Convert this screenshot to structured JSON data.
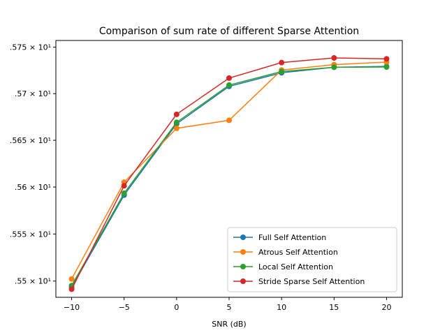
{
  "chart_data": {
    "type": "line",
    "title": "Comparison of sum rate of different Sparse Attention",
    "xlabel": "SNR (dB)",
    "ylabel": "",
    "x": [
      -10,
      -5,
      0,
      5,
      10,
      15,
      20
    ],
    "xticks": [
      "−10",
      "−5",
      "0",
      "5",
      "10",
      "15",
      "20"
    ],
    "xlim": [
      -11.5,
      21.5
    ],
    "ylim": [
      15.4828,
      15.7572
    ],
    "yscale": "log",
    "yticks": [
      {
        "value": 15.5,
        "label": ".55 × 10¹"
      },
      {
        "value": 15.55,
        "label": ".555 × 10¹"
      },
      {
        "value": 15.6,
        "label": ".56 × 10¹"
      },
      {
        "value": 15.65,
        "label": ".565 × 10¹"
      },
      {
        "value": 15.7,
        "label": ".57 × 10¹"
      },
      {
        "value": 15.75,
        "label": ".575 × 10¹"
      }
    ],
    "legend_position": "lower-right",
    "grid": false,
    "series": [
      {
        "name": "Full Self Attention",
        "color": "#1f77b4",
        "values": [
          15.4934,
          15.5914,
          15.6676,
          15.7078,
          15.7224,
          15.7284,
          15.7293
        ]
      },
      {
        "name": "Atrous Self Attention",
        "color": "#ff7f0e",
        "values": [
          15.5022,
          15.6051,
          15.6628,
          15.6714,
          15.7254,
          15.7312,
          15.7339
        ]
      },
      {
        "name": "Local Self Attention",
        "color": "#2ca02c",
        "values": [
          15.4952,
          15.5934,
          15.6692,
          15.7092,
          15.7238,
          15.7284,
          15.7286
        ]
      },
      {
        "name": "Stride Sparse Self Attention",
        "color": "#d62728",
        "values": [
          15.4914,
          15.6014,
          15.6778,
          15.7167,
          15.7334,
          15.7384,
          15.7374
        ]
      }
    ]
  }
}
